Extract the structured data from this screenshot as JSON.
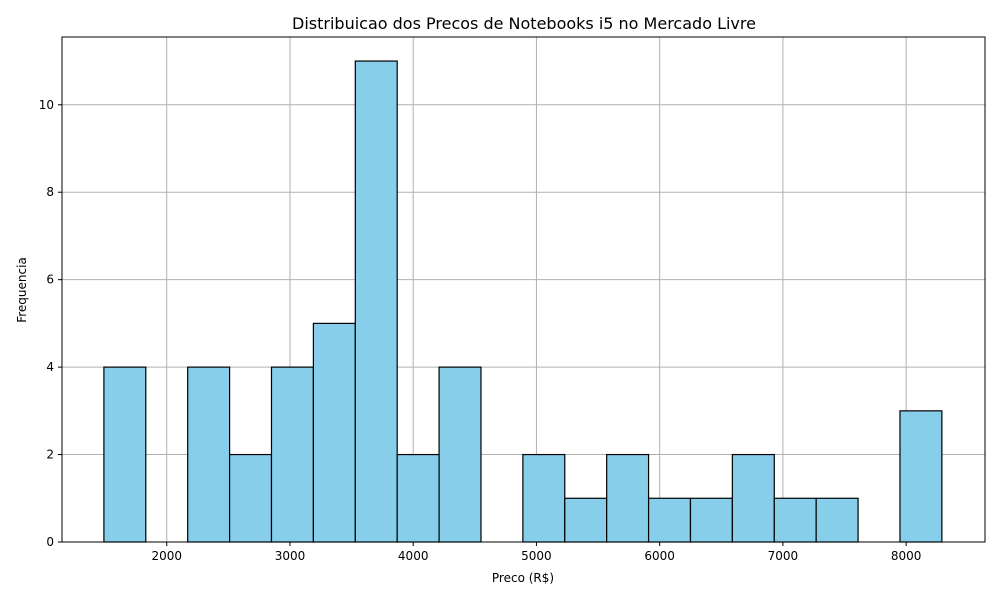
{
  "chart_data": {
    "type": "bar",
    "title": "Distribuicao dos Precos de Notebooks i5 no Mercado Livre",
    "xlabel": "Preco (R$)",
    "ylabel": "Frequencia",
    "xlim": [
      1150,
      8640
    ],
    "ylim": [
      0,
      11.55
    ],
    "xticks": [
      2000,
      3000,
      4000,
      5000,
      6000,
      7000,
      8000
    ],
    "yticks": [
      0,
      2,
      4,
      6,
      8,
      10
    ],
    "grid": true,
    "bar_color": "#87ceeb",
    "edge_color": "#000000",
    "bins": [
      {
        "start": 1490,
        "end": 1830,
        "value": 4
      },
      {
        "start": 1830,
        "end": 2170,
        "value": 0
      },
      {
        "start": 2170,
        "end": 2510,
        "value": 4
      },
      {
        "start": 2510,
        "end": 2850,
        "value": 2
      },
      {
        "start": 2850,
        "end": 3190,
        "value": 4
      },
      {
        "start": 3190,
        "end": 3530,
        "value": 5
      },
      {
        "start": 3530,
        "end": 3870,
        "value": 11
      },
      {
        "start": 3870,
        "end": 4210,
        "value": 2
      },
      {
        "start": 4210,
        "end": 4550,
        "value": 4
      },
      {
        "start": 4550,
        "end": 4890,
        "value": 0
      },
      {
        "start": 4890,
        "end": 5230,
        "value": 2
      },
      {
        "start": 5230,
        "end": 5570,
        "value": 1
      },
      {
        "start": 5570,
        "end": 5910,
        "value": 2
      },
      {
        "start": 5910,
        "end": 6250,
        "value": 1
      },
      {
        "start": 6250,
        "end": 6590,
        "value": 1
      },
      {
        "start": 6590,
        "end": 6930,
        "value": 2
      },
      {
        "start": 6930,
        "end": 7270,
        "value": 1
      },
      {
        "start": 7270,
        "end": 7610,
        "value": 1
      },
      {
        "start": 7610,
        "end": 7950,
        "value": 0
      },
      {
        "start": 7950,
        "end": 8290,
        "value": 3
      }
    ]
  }
}
